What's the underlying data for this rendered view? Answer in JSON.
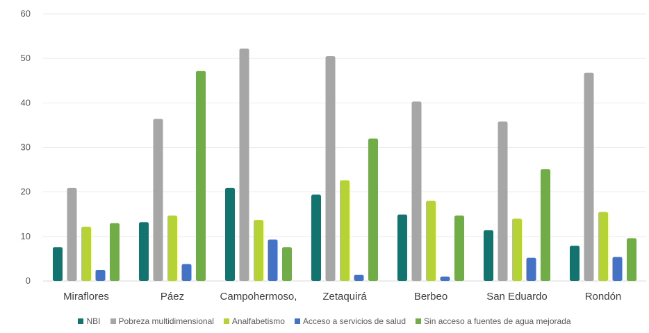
{
  "chart_data": {
    "type": "bar",
    "categories": [
      "Miraflores",
      "Páez",
      "Campohermoso,",
      "Zetaquirá",
      "Berbeo",
      "San Eduardo",
      "Rondón"
    ],
    "series": [
      {
        "name": "NBI",
        "color": "#13736f",
        "values": [
          7.6,
          13.2,
          20.9,
          19.4,
          14.9,
          11.4,
          7.9
        ]
      },
      {
        "name": "Pobreza multidimensional",
        "color": "#a6a6a6",
        "values": [
          20.9,
          36.4,
          52.2,
          50.5,
          40.3,
          35.8,
          46.8
        ]
      },
      {
        "name": "Analfabetismo",
        "color": "#b5d334",
        "values": [
          12.2,
          14.7,
          13.7,
          22.6,
          18.0,
          14.0,
          15.5
        ]
      },
      {
        "name": "Acceso a servicios de salud",
        "color": "#4472c4",
        "values": [
          2.5,
          3.8,
          9.3,
          1.4,
          1.0,
          5.2,
          5.4
        ]
      },
      {
        "name": "Sin acceso a fuentes de agua mejorada",
        "color": "#70ad47",
        "values": [
          13.0,
          47.2,
          7.6,
          32.0,
          14.7,
          25.1,
          9.6
        ]
      }
    ],
    "ylim": [
      0,
      60
    ],
    "yticks": [
      0,
      10,
      20,
      30,
      40,
      50,
      60
    ],
    "grid": true,
    "legend_position": "bottom"
  }
}
